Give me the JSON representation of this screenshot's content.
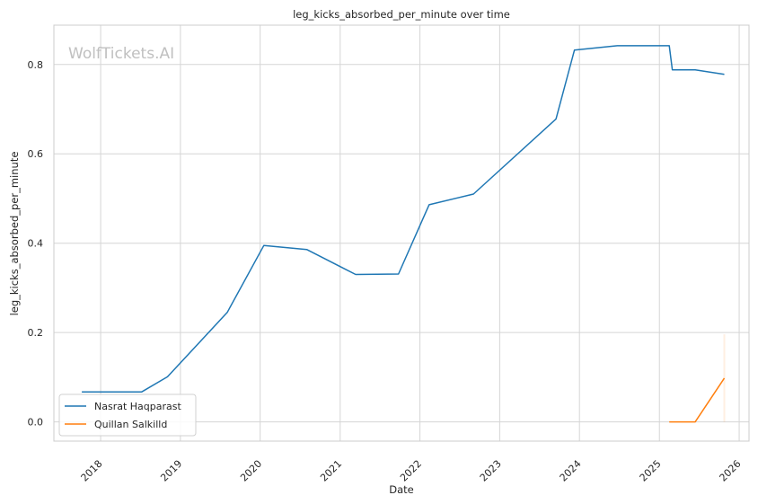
{
  "chart_data": {
    "type": "line",
    "title": "leg_kicks_absorbed_per_minute over time",
    "xlabel": "Date",
    "ylabel": "leg_kicks_absorbed_per_minute",
    "watermark": "WolfTickets.AI",
    "xlim": [
      "2017-06-01",
      "2026-02-15"
    ],
    "ylim": [
      -0.043,
      0.888
    ],
    "x_ticks": [
      "2018",
      "2019",
      "2020",
      "2021",
      "2022",
      "2023",
      "2024",
      "2025",
      "2026"
    ],
    "y_ticks": [
      "0.0",
      "0.2",
      "0.4",
      "0.6",
      "0.8"
    ],
    "grid": true,
    "legend_position": "bottom-left",
    "series": [
      {
        "name": "Nasrat Haqparast",
        "color": "#1f77b4",
        "x": [
          "2017-10-07",
          "2018-07-07",
          "2018-11-03",
          "2019-08-03",
          "2020-01-18",
          "2020-08-01",
          "2021-03-13",
          "2021-09-25",
          "2022-02-12",
          "2022-09-03",
          "2023-09-16",
          "2023-12-09",
          "2024-06-22",
          "2025-02-15",
          "2025-03-01",
          "2025-06-14",
          "2025-10-25"
        ],
        "y": [
          0.067,
          0.067,
          0.101,
          0.245,
          0.395,
          0.386,
          0.33,
          0.331,
          0.486,
          0.51,
          0.678,
          0.832,
          0.842,
          0.842,
          0.788,
          0.788,
          0.778
        ]
      },
      {
        "name": "Quillan Salkilld",
        "color": "#ff7f0e",
        "x": [
          "2025-02-15",
          "2025-06-14",
          "2025-10-25"
        ],
        "y": [
          0.0,
          0.0,
          0.098
        ],
        "band": {
          "x": "2025-10-25",
          "low": 0.0,
          "high": 0.196
        }
      }
    ]
  }
}
